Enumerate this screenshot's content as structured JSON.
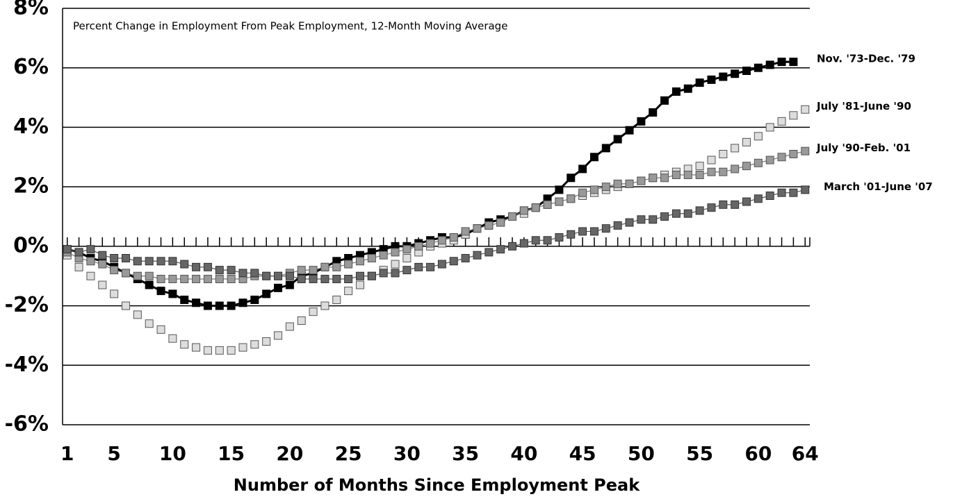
{
  "chart_data": {
    "type": "line",
    "title": "Percent Change in Employment From Peak Employment, 12-Month Moving Average",
    "x_label": "Number of Months Since Employment Peak",
    "x": [
      1,
      2,
      3,
      4,
      5,
      6,
      7,
      8,
      9,
      10,
      11,
      12,
      13,
      14,
      15,
      16,
      17,
      18,
      19,
      20,
      21,
      22,
      23,
      24,
      25,
      26,
      27,
      28,
      29,
      30,
      31,
      32,
      33,
      34,
      35,
      36,
      37,
      38,
      39,
      40,
      41,
      42,
      43,
      44,
      45,
      46,
      47,
      48,
      49,
      50,
      51,
      52,
      53,
      54,
      55,
      56,
      57,
      58,
      59,
      60,
      61,
      62,
      63,
      64
    ],
    "xlim": [
      0.6,
      64.4
    ],
    "xticks": [
      1,
      5,
      10,
      15,
      20,
      25,
      30,
      35,
      40,
      45,
      50,
      55,
      60,
      64
    ],
    "ylim": [
      -6,
      8
    ],
    "yticks": [
      {
        "value": 8,
        "label": "8%"
      },
      {
        "value": 6,
        "label": "6%"
      },
      {
        "value": 4,
        "label": "4%"
      },
      {
        "value": 2,
        "label": "2%"
      },
      {
        "value": 0,
        "label": "0%"
      },
      {
        "value": -2,
        "label": "-2%"
      },
      {
        "value": -4,
        "label": "-4%"
      },
      {
        "value": -6,
        "label": "-6%"
      }
    ],
    "grid": true,
    "series": [
      {
        "name": "Nov. '73-Dec. '79",
        "color": "#000000",
        "values": [
          -0.1,
          -0.2,
          -0.4,
          -0.5,
          -0.7,
          -0.9,
          -1.1,
          -1.3,
          -1.5,
          -1.6,
          -1.8,
          -1.9,
          -2.0,
          -2.0,
          -2.0,
          -1.9,
          -1.8,
          -1.6,
          -1.4,
          -1.3,
          -1.0,
          -0.9,
          -0.7,
          -0.5,
          -0.4,
          -0.3,
          -0.2,
          -0.1,
          0.0,
          0.0,
          0.1,
          0.2,
          0.3,
          0.3,
          0.4,
          0.6,
          0.8,
          0.9,
          1.0,
          1.2,
          1.3,
          1.6,
          1.9,
          2.3,
          2.6,
          3.0,
          3.3,
          3.6,
          3.9,
          4.2,
          4.5,
          4.9,
          5.2,
          5.3,
          5.5,
          5.6,
          5.7,
          5.8,
          5.9,
          6.0,
          6.1,
          6.2,
          6.2,
          null
        ]
      },
      {
        "name": "July '81-June '90",
        "color": "#dddddd",
        "values": [
          -0.3,
          -0.7,
          -1.0,
          -1.3,
          -1.6,
          -2.0,
          -2.3,
          -2.6,
          -2.8,
          -3.1,
          -3.3,
          -3.4,
          -3.5,
          -3.5,
          -3.5,
          -3.4,
          -3.3,
          -3.2,
          -3.0,
          -2.7,
          -2.5,
          -2.2,
          -2.0,
          -1.8,
          -1.5,
          -1.3,
          -1.0,
          -0.8,
          -0.6,
          -0.4,
          -0.2,
          0.0,
          0.1,
          0.2,
          0.4,
          0.6,
          0.7,
          0.8,
          1.0,
          1.1,
          1.3,
          1.4,
          1.5,
          1.6,
          1.7,
          1.8,
          1.9,
          2.0,
          2.1,
          2.2,
          2.3,
          2.4,
          2.5,
          2.6,
          2.7,
          2.9,
          3.1,
          3.3,
          3.5,
          3.7,
          4.0,
          4.2,
          4.4,
          4.6
        ]
      },
      {
        "name": "July '90-Feb. '01",
        "color": "#999999",
        "values": [
          -0.2,
          -0.4,
          -0.5,
          -0.6,
          -0.8,
          -0.9,
          -1.0,
          -1.0,
          -1.1,
          -1.1,
          -1.1,
          -1.1,
          -1.1,
          -1.1,
          -1.1,
          -1.1,
          -1.0,
          -1.0,
          -1.0,
          -0.9,
          -0.8,
          -0.8,
          -0.7,
          -0.7,
          -0.6,
          -0.5,
          -0.4,
          -0.3,
          -0.2,
          -0.1,
          0.0,
          0.1,
          0.2,
          0.3,
          0.5,
          0.6,
          0.7,
          0.8,
          1.0,
          1.2,
          1.3,
          1.4,
          1.5,
          1.6,
          1.8,
          1.9,
          2.0,
          2.1,
          2.1,
          2.2,
          2.3,
          2.3,
          2.4,
          2.4,
          2.4,
          2.5,
          2.5,
          2.6,
          2.7,
          2.8,
          2.9,
          3.0,
          3.1,
          3.2
        ]
      },
      {
        "name": "March '01-June '07",
        "color": "#666666",
        "values": [
          -0.1,
          -0.2,
          -0.1,
          -0.3,
          -0.4,
          -0.4,
          -0.5,
          -0.5,
          -0.5,
          -0.5,
          -0.6,
          -0.7,
          -0.7,
          -0.8,
          -0.8,
          -0.9,
          -0.9,
          -1.0,
          -1.0,
          -1.0,
          -1.1,
          -1.1,
          -1.1,
          -1.1,
          -1.1,
          -1.0,
          -1.0,
          -0.9,
          -0.9,
          -0.8,
          -0.7,
          -0.7,
          -0.6,
          -0.5,
          -0.4,
          -0.3,
          -0.2,
          -0.1,
          0.0,
          0.1,
          0.2,
          0.2,
          0.3,
          0.4,
          0.5,
          0.5,
          0.6,
          0.7,
          0.8,
          0.9,
          0.9,
          1.0,
          1.1,
          1.1,
          1.2,
          1.3,
          1.4,
          1.4,
          1.5,
          1.6,
          1.7,
          1.8,
          1.8,
          1.9
        ]
      }
    ]
  }
}
